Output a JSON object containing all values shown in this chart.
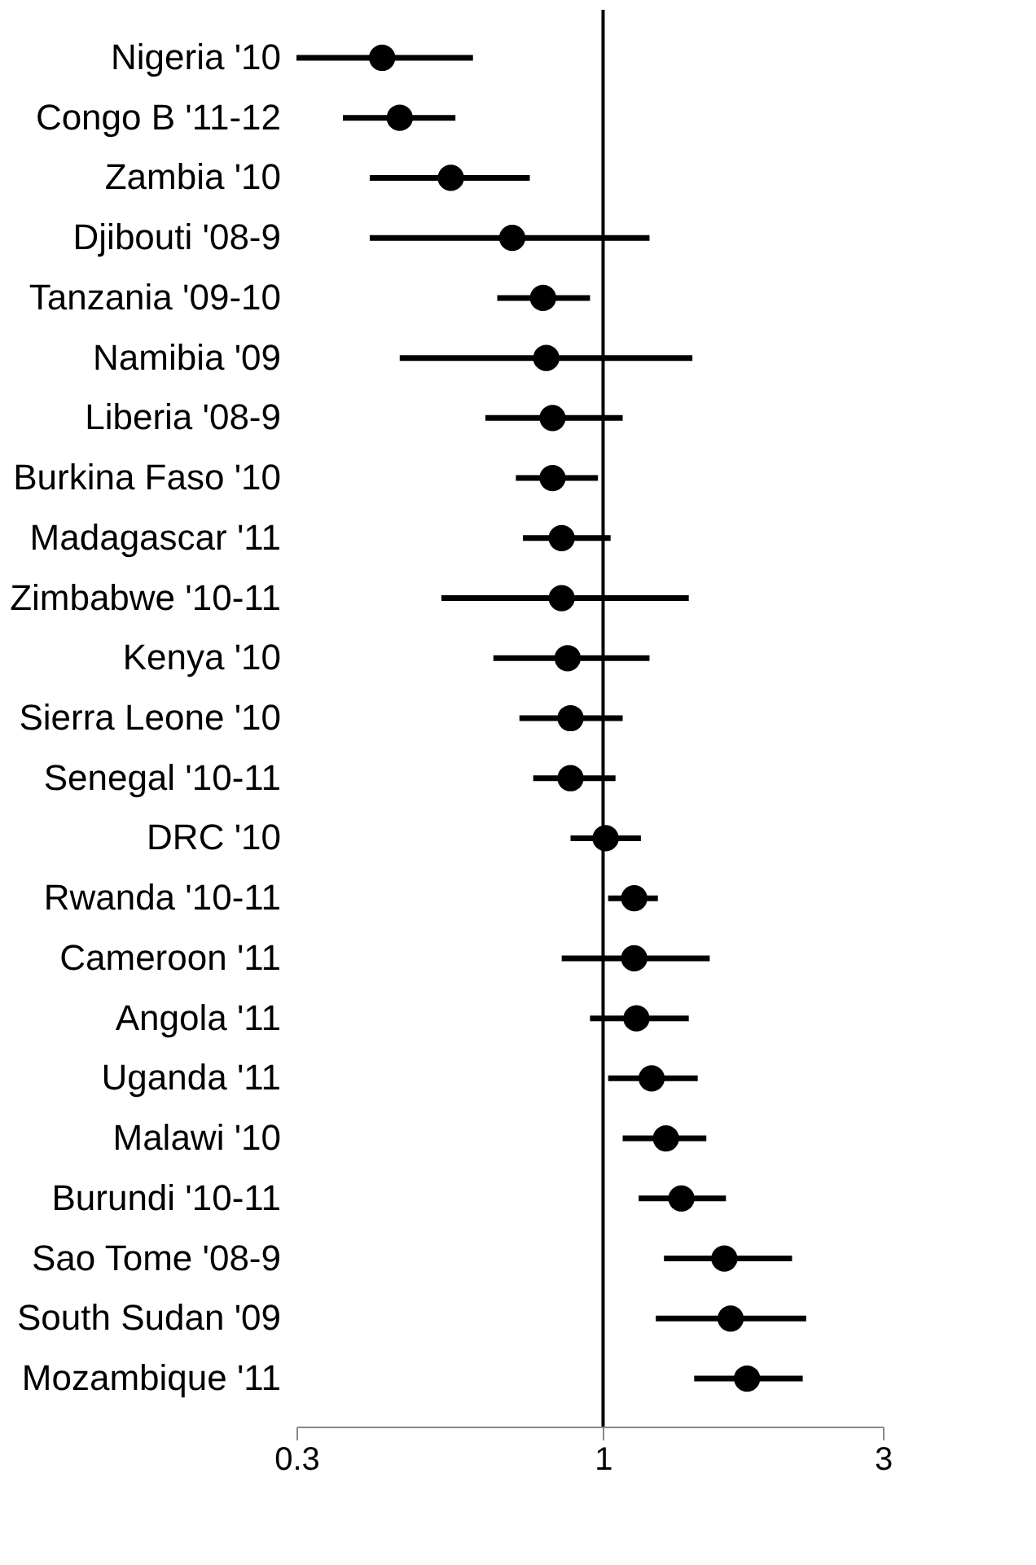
{
  "chart_data": {
    "type": "scatter",
    "orientation": "horizontal",
    "log": "x",
    "marker": "circle",
    "grid": false,
    "color": "#000000",
    "categories": [
      "Nigeria '10",
      "Congo B '11-12",
      "Zambia '10",
      "Djibouti '08-9",
      "Tanzania '09-10",
      "Namibia '09",
      "Liberia '08-9",
      "Burkina Faso '10",
      "Madagascar '11",
      "Zimbabwe '10-11",
      "Kenya '10",
      "Sierra Leone '10",
      "Senegal '10-11",
      "DRC '10",
      "Rwanda '10-11",
      "Cameroon '11",
      "Angola '11",
      "Uganda '11",
      "Malawi '10",
      "Burundi '10-11",
      "Sao Tome '08-9",
      "South Sudan '09",
      "Mozambique '11"
    ],
    "values": [
      0.42,
      0.45,
      0.55,
      0.7,
      0.79,
      0.8,
      0.82,
      0.82,
      0.85,
      0.85,
      0.87,
      0.88,
      0.88,
      1.01,
      1.13,
      1.13,
      1.14,
      1.21,
      1.28,
      1.36,
      1.61,
      1.65,
      1.76
    ],
    "errors": [
      [
        0.3,
        0.6
      ],
      [
        0.36,
        0.56
      ],
      [
        0.4,
        0.75
      ],
      [
        0.4,
        1.2
      ],
      [
        0.66,
        0.95
      ],
      [
        0.45,
        1.42
      ],
      [
        0.63,
        1.08
      ],
      [
        0.71,
        0.98
      ],
      [
        0.73,
        1.03
      ],
      [
        0.53,
        1.4
      ],
      [
        0.65,
        1.2
      ],
      [
        0.72,
        1.08
      ],
      [
        0.76,
        1.05
      ],
      [
        0.88,
        1.16
      ],
      [
        1.02,
        1.24
      ],
      [
        0.85,
        1.52
      ],
      [
        0.95,
        1.4
      ],
      [
        1.02,
        1.45
      ],
      [
        1.08,
        1.5
      ],
      [
        1.15,
        1.62
      ],
      [
        1.27,
        2.1
      ],
      [
        1.23,
        2.22
      ],
      [
        1.43,
        2.19
      ]
    ],
    "xlim": [
      0.3,
      3
    ],
    "xticks": [
      0.3,
      1,
      3
    ],
    "ref_lines": [
      {
        "axis": "x",
        "value": 1,
        "color": "#000000"
      }
    ]
  }
}
